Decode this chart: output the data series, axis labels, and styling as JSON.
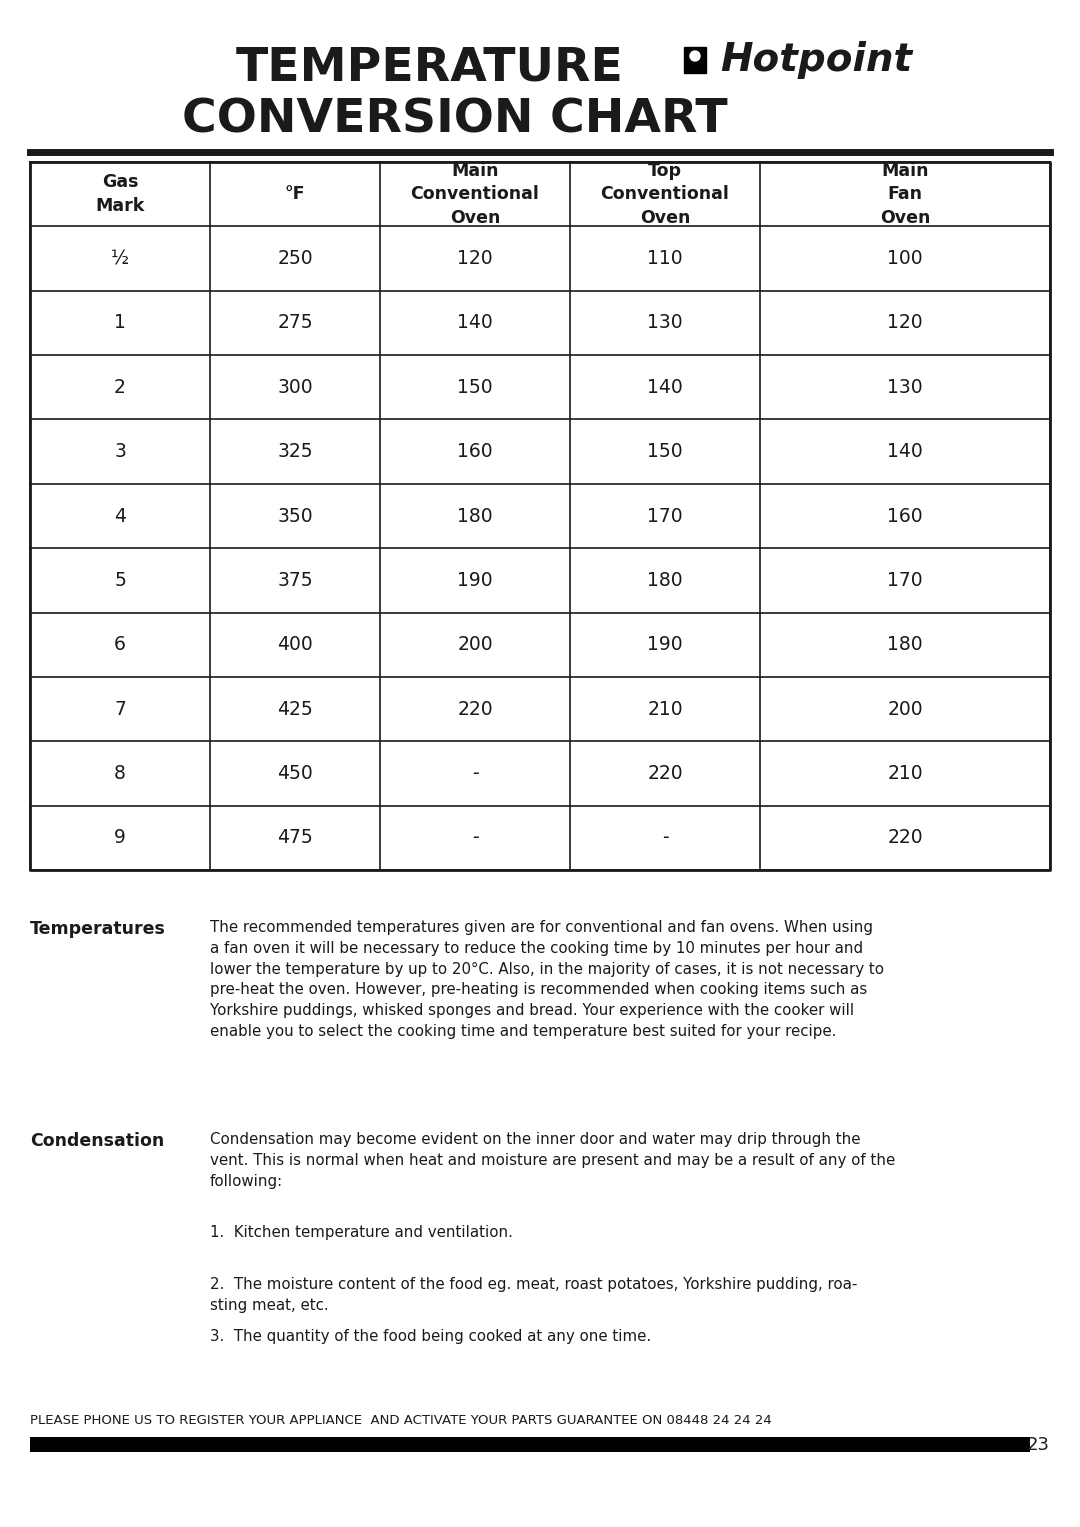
{
  "title_line1": "TEMPERATURE",
  "title_line2": "CONVERSION CHART",
  "hotpoint_text": "Hotpoint",
  "columns": [
    "Gas\nMark",
    "°F",
    "Main\nConventional\nOven",
    "Top\nConventional\nOven",
    "Main\nFan\nOven"
  ],
  "rows": [
    [
      "½",
      "250",
      "120",
      "110",
      "100"
    ],
    [
      "1",
      "275",
      "140",
      "130",
      "120"
    ],
    [
      "2",
      "300",
      "150",
      "140",
      "130"
    ],
    [
      "3",
      "325",
      "160",
      "150",
      "140"
    ],
    [
      "4",
      "350",
      "180",
      "170",
      "160"
    ],
    [
      "5",
      "375",
      "190",
      "180",
      "170"
    ],
    [
      "6",
      "400",
      "200",
      "190",
      "180"
    ],
    [
      "7",
      "425",
      "220",
      "210",
      "200"
    ],
    [
      "8",
      "450",
      "-",
      "220",
      "210"
    ],
    [
      "9",
      "475",
      "-",
      "-",
      "220"
    ]
  ],
  "temperatures_heading": "Temperatures",
  "temperatures_text": "The recommended temperatures given are for conventional and fan ovens. When using a fan oven it will be necessary to reduce the cooking time by 10 minutes per hour and lower the temperature by up to 20°C. Also, in the majority of cases, it is not necessary to pre-heat the oven. However, pre-heating is recommended when cooking items such as Yorkshire puddings, whisked sponges and bread. Your experience with the cooker will enable you to select the cooking time and temperature best suited for your recipe.",
  "condensation_heading": "Condensation",
  "condensation_text": "Condensation may become evident on the inner door and water may drip through the vent. This is normal when heat and moisture are present and may be a result of any of the following:",
  "condensation_item1": "Kitchen temperature and ventilation.",
  "condensation_item2": "The moisture content of the food eg. meat, roast potatoes, Yorkshire pudding, roa-\nsting meat, etc.",
  "condensation_item3": "The quantity of the food being cooked at any one time.",
  "footer_text": "PLEASE PHONE US TO REGISTER YOUR APPLIANCE  AND ACTIVATE YOUR PARTS GUARANTEE ON 08448 24 24 24",
  "page_number": "23",
  "bg_color": "#ffffff",
  "text_color": "#1a1a1a",
  "table_border_color": "#1a1a1a",
  "header_bar_color": "#1a1a1a",
  "footer_bar_color": "#1a1a1a"
}
